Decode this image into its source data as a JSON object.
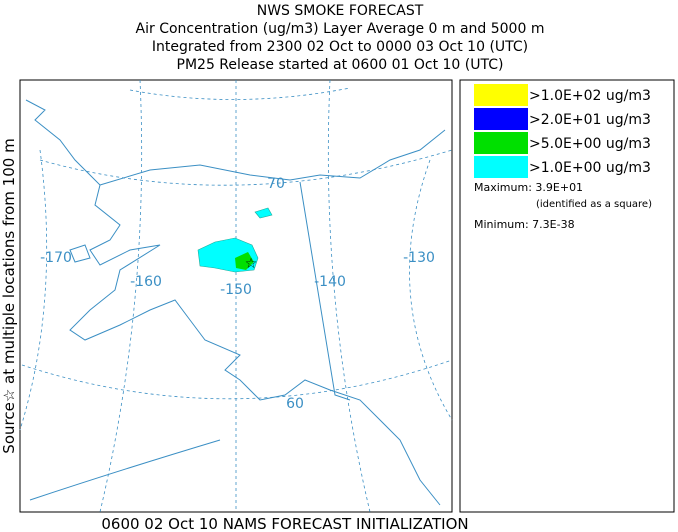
{
  "header": {
    "title": "NWS SMOKE FORECAST",
    "lines": [
      "Air Concentration (ug/m3) Layer Average    0 m and  5000 m",
      "Integrated from 2300 02 Oct to 0000 03 Oct 10 (UTC)",
      "PM25 Release started at 0600 01 Oct 10 (UTC)"
    ]
  },
  "side_label": "Source☆ at multiple locations from  100 m",
  "footer": "0600 02 Oct 10 NAMS FORECAST INITIALIZATION",
  "map": {
    "graticule_labels": [
      "-170",
      "-160",
      "-150",
      "-140",
      "-130",
      "70",
      "60"
    ]
  },
  "legend": {
    "entries": [
      {
        "label": ">1.0E+02 ug/m3",
        "color": "#ffff00"
      },
      {
        "label": ">2.0E+01 ug/m3",
        "color": "#0000ff"
      },
      {
        "label": ">5.0E+00 ug/m3",
        "color": "#00e000"
      },
      {
        "label": ">1.0E+00 ug/m3",
        "color": "#00ffff"
      }
    ],
    "maximum": "Maximum: 3.9E+01",
    "maximum_note": "(identified as a square)",
    "minimum": "Minimum: 7.3E-38"
  }
}
